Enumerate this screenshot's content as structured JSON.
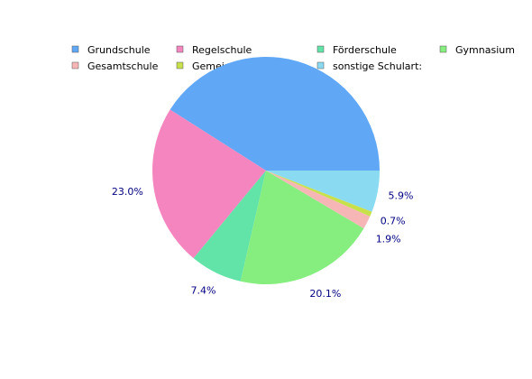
{
  "chart_data": {
    "type": "pie",
    "legend_placement": "top",
    "categories": [
      "Grundschule",
      "Regelschule",
      "Förderschule",
      "Gymnasium",
      "Gesamtschule",
      "Gemeinschaftsschule",
      "sonstige Schulart:"
    ],
    "legend_order": [
      "Grundschule",
      "Regelschule",
      "Förderschule",
      "Gymnasium",
      "Gesamtschule",
      "Gemeinschaftsschule",
      "sonstige Schulart:"
    ],
    "values": [
      41.0,
      23.0,
      7.4,
      20.1,
      1.9,
      0.7,
      5.9
    ],
    "value_labels": [
      "",
      "23.0%",
      "7.4%",
      "20.1%",
      "1.9%",
      "0.7%",
      "5.9%"
    ],
    "colors": [
      "#60a8f6",
      "#f485bf",
      "#62e3a8",
      "#86ee7f",
      "#f6b6b6",
      "#c8e04a",
      "#8adaf2"
    ]
  }
}
